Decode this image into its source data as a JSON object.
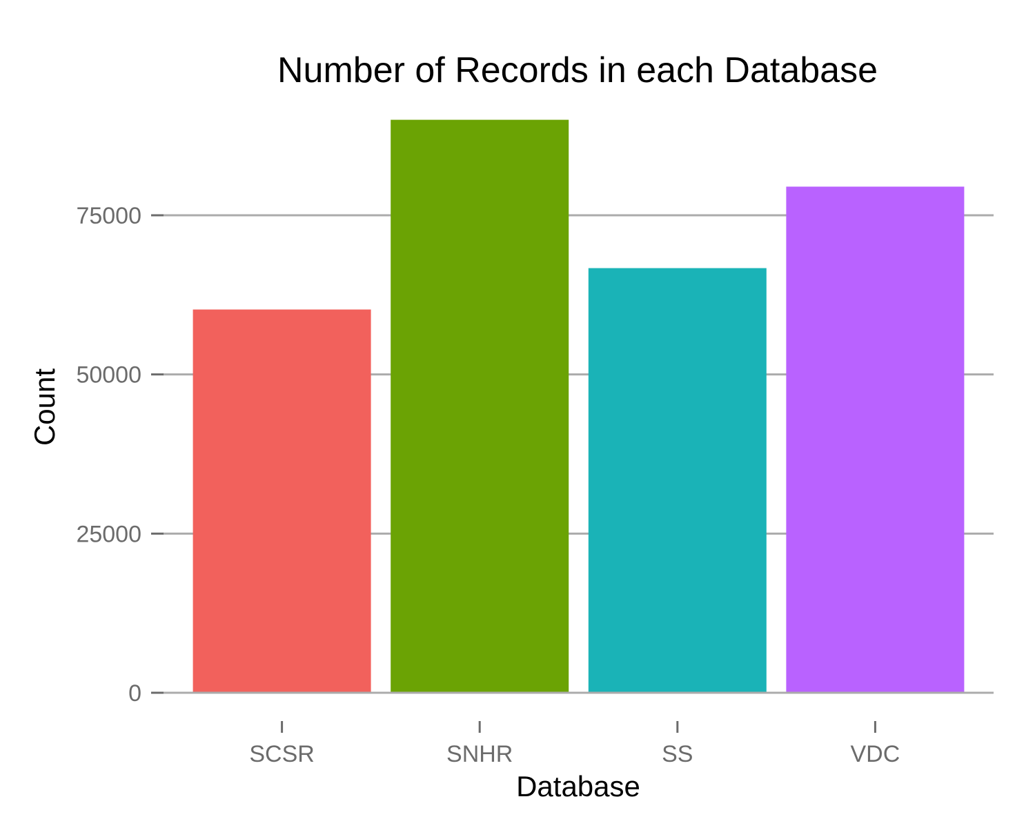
{
  "chart_data": {
    "type": "bar",
    "title": "Number of Records in each Database",
    "xlabel": "Database",
    "ylabel": "Count",
    "categories": [
      "SCSR",
      "SNHR",
      "SS",
      "VDC"
    ],
    "values": [
      60200,
      90000,
      66700,
      79500
    ],
    "colors": [
      "#F2615C",
      "#6BA304",
      "#1AB3B7",
      "#B962FF"
    ],
    "ylim": [
      0,
      90000
    ],
    "yticks": [
      0,
      25000,
      50000,
      75000
    ],
    "ytick_labels": [
      "0",
      "25000",
      "50000",
      "75000"
    ],
    "grid": true,
    "legend": "none"
  }
}
